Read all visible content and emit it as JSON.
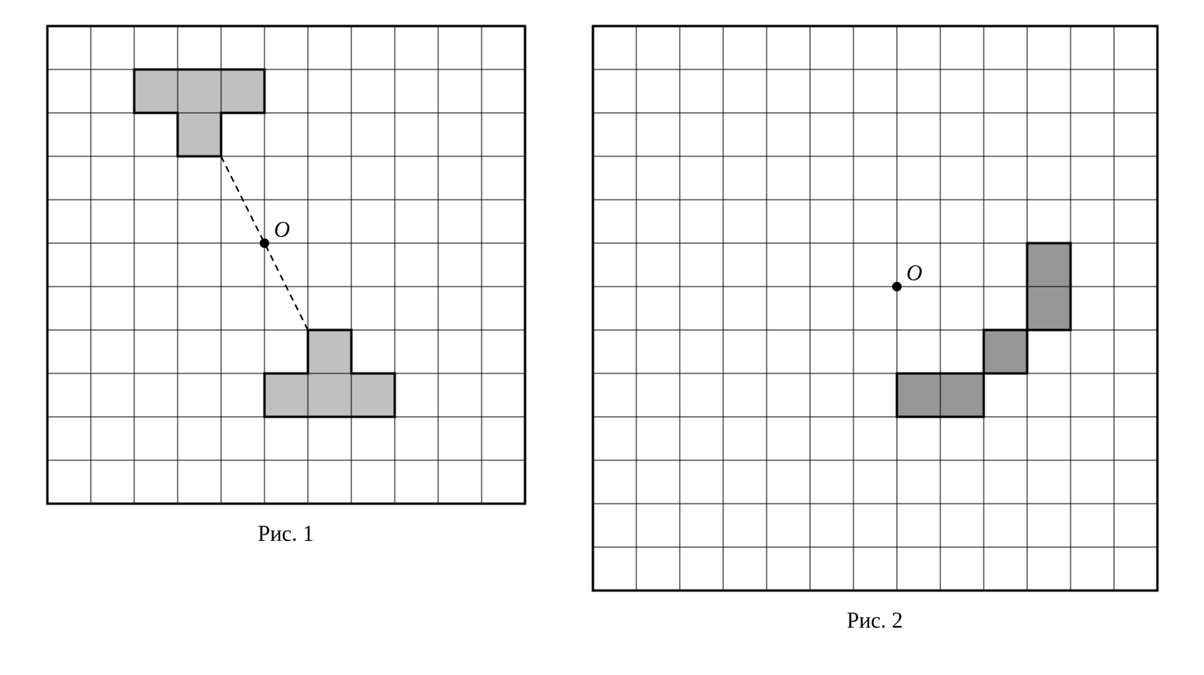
{
  "figure1": {
    "caption": "Рис. 1",
    "grid": {
      "cols": 11,
      "rows": 11,
      "cell_size": 55,
      "background_color": "#ffffff",
      "outer_border_color": "#000000",
      "outer_border_width": 3,
      "inner_line_color": "#000000",
      "inner_line_width": 1
    },
    "shape_fill": "#c0c0c0",
    "shape_border_color": "#000000",
    "shape_border_width": 3,
    "shape_top": {
      "cells": [
        {
          "col": 2,
          "row": 1
        },
        {
          "col": 3,
          "row": 1
        },
        {
          "col": 4,
          "row": 1
        },
        {
          "col": 3,
          "row": 2
        }
      ],
      "outline": [
        [
          2,
          1
        ],
        [
          5,
          1
        ],
        [
          5,
          2
        ],
        [
          4,
          2
        ],
        [
          4,
          3
        ],
        [
          3,
          3
        ],
        [
          3,
          2
        ],
        [
          2,
          2
        ]
      ]
    },
    "shape_bottom": {
      "cells": [
        {
          "col": 6,
          "row": 7
        },
        {
          "col": 5,
          "row": 8
        },
        {
          "col": 6,
          "row": 8
        },
        {
          "col": 7,
          "row": 8
        }
      ],
      "outline": [
        [
          6,
          7
        ],
        [
          7,
          7
        ],
        [
          7,
          8
        ],
        [
          8,
          8
        ],
        [
          8,
          9
        ],
        [
          5,
          9
        ],
        [
          5,
          8
        ],
        [
          6,
          8
        ]
      ]
    },
    "point": {
      "label": "O",
      "col": 5,
      "row": 5,
      "radius": 6,
      "color": "#000000",
      "label_fontsize": 28,
      "label_style": "italic",
      "label_dx": 12,
      "label_dy": -8
    },
    "dashed_line": {
      "from": {
        "col": 4,
        "row": 3
      },
      "to": {
        "col": 6,
        "row": 7
      },
      "color": "#000000",
      "width": 2,
      "dash": "8,6"
    }
  },
  "figure2": {
    "caption": "Рис. 2",
    "grid": {
      "cols": 13,
      "rows": 13,
      "cell_size": 55,
      "background_color": "#ffffff",
      "outer_border_color": "#000000",
      "outer_border_width": 3,
      "inner_line_color": "#000000",
      "inner_line_width": 1
    },
    "shape_fill": "#969696",
    "shape_border_color": "#000000",
    "shape_border_width": 3,
    "shape": {
      "cells": [
        {
          "col": 10,
          "row": 5
        },
        {
          "col": 10,
          "row": 6
        },
        {
          "col": 9,
          "row": 7
        },
        {
          "col": 7,
          "row": 8
        },
        {
          "col": 8,
          "row": 8
        }
      ],
      "outline": [
        [
          10,
          5
        ],
        [
          11,
          5
        ],
        [
          11,
          7
        ],
        [
          10,
          7
        ],
        [
          10,
          8
        ],
        [
          9,
          8
        ],
        [
          9,
          9
        ],
        [
          7,
          9
        ],
        [
          7,
          8
        ],
        [
          8,
          8
        ],
        [
          9,
          8
        ],
        [
          9,
          7
        ],
        [
          10,
          7
        ]
      ]
    },
    "point": {
      "label": "O",
      "col": 7,
      "row": 6,
      "radius": 6,
      "color": "#000000",
      "label_fontsize": 28,
      "label_style": "italic",
      "label_dx": 12,
      "label_dy": -8
    }
  }
}
